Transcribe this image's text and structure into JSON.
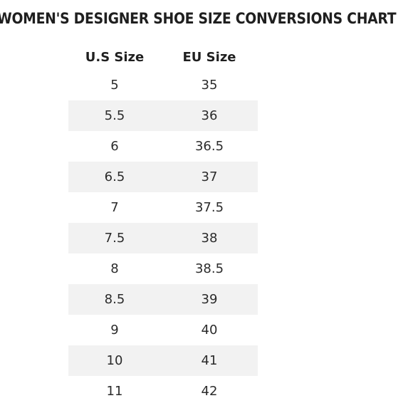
{
  "title": "WOMEN'S DESIGNER SHOE SIZE CONVERSIONS CHART",
  "columns": {
    "us": "U.S Size",
    "eu": "EU Size"
  },
  "rows": [
    {
      "us": "5",
      "eu": "35"
    },
    {
      "us": "5.5",
      "eu": "36"
    },
    {
      "us": "6",
      "eu": "36.5"
    },
    {
      "us": "6.5",
      "eu": "37"
    },
    {
      "us": "7",
      "eu": "37.5"
    },
    {
      "us": "7.5",
      "eu": "38"
    },
    {
      "us": "8",
      "eu": "38.5"
    },
    {
      "us": "8.5",
      "eu": "39"
    },
    {
      "us": "9",
      "eu": "40"
    },
    {
      "us": "10",
      "eu": "41"
    },
    {
      "us": "11",
      "eu": "42"
    }
  ]
}
